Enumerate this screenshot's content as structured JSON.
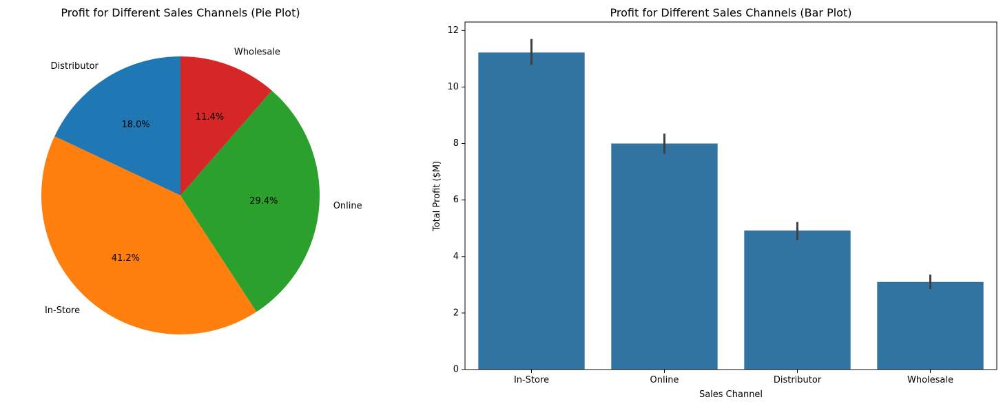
{
  "chart_data": [
    {
      "type": "pie",
      "title": "Profit for Different Sales Channels (Pie Plot)",
      "slices": [
        {
          "label": "Distributor",
          "value": 18.0,
          "pct_label": "18.0%",
          "color": "#1f77b4"
        },
        {
          "label": "In-Store",
          "value": 41.2,
          "pct_label": "41.2%",
          "color": "#ff7f0e"
        },
        {
          "label": "Online",
          "value": 29.4,
          "pct_label": "29.4%",
          "color": "#2ca02c"
        },
        {
          "label": "Wholesale",
          "value": 11.4,
          "pct_label": "11.4%",
          "color": "#d62728"
        }
      ]
    },
    {
      "type": "bar",
      "title": "Profit for Different Sales Channels (Bar Plot)",
      "xlabel": "Sales Channel",
      "ylabel": "Total Profit ($M)",
      "categories": [
        "In-Store",
        "Online",
        "Distributor",
        "Wholesale"
      ],
      "values": [
        11.22,
        8.0,
        4.92,
        3.1
      ],
      "error_low": [
        10.78,
        7.63,
        4.58,
        2.85
      ],
      "error_high": [
        11.7,
        8.35,
        5.22,
        3.36
      ],
      "ylim": [
        0,
        12.3
      ],
      "yticks": [
        "0",
        "2",
        "4",
        "6",
        "8",
        "10",
        "12"
      ],
      "bar_color": "#3274a1",
      "error_color": "#3f3f3f",
      "grid": false
    }
  ]
}
